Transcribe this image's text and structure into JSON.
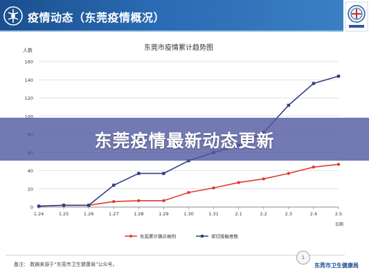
{
  "header": {
    "title": "疫情动态（东莞疫情概况）",
    "logo_icon": "health-logo-icon",
    "emblem_icon": "bureau-emblem-icon"
  },
  "chart_data": {
    "type": "line",
    "title": "东莞市疫情累计趋势图",
    "ylabel": "人数",
    "xlabel": "日期",
    "ylim": [
      0,
      160
    ],
    "yticks": [
      0,
      20,
      40,
      60,
      80,
      100,
      120,
      140,
      160
    ],
    "categories": [
      "1.24",
      "1.25",
      "1.26",
      "1.27",
      "1.28",
      "1.29",
      "1.30",
      "1.31",
      "2.1",
      "2.2",
      "2.3",
      "2.4",
      "2.5"
    ],
    "grid": true,
    "legend_position": "bottom",
    "series": [
      {
        "name": "东莞累计确诊病例",
        "color": "#e03a2f",
        "marker": "circle",
        "values": [
          1,
          2,
          2,
          6,
          7,
          7,
          16,
          21,
          27,
          31,
          37,
          44,
          47
        ]
      },
      {
        "name": "密切接触者数",
        "color": "#2f3f7f",
        "marker": "square",
        "values": [
          1,
          2,
          2,
          24,
          37,
          37,
          51,
          60,
          68,
          82,
          112,
          136,
          144
        ]
      }
    ]
  },
  "banner": {
    "text": "东莞疫情最新动态更新"
  },
  "footer": {
    "note": "备注：  数据来源于“东莞市卫生健康局”公众号。",
    "page_number": "1",
    "organization": "东莞市卫生健康局"
  }
}
